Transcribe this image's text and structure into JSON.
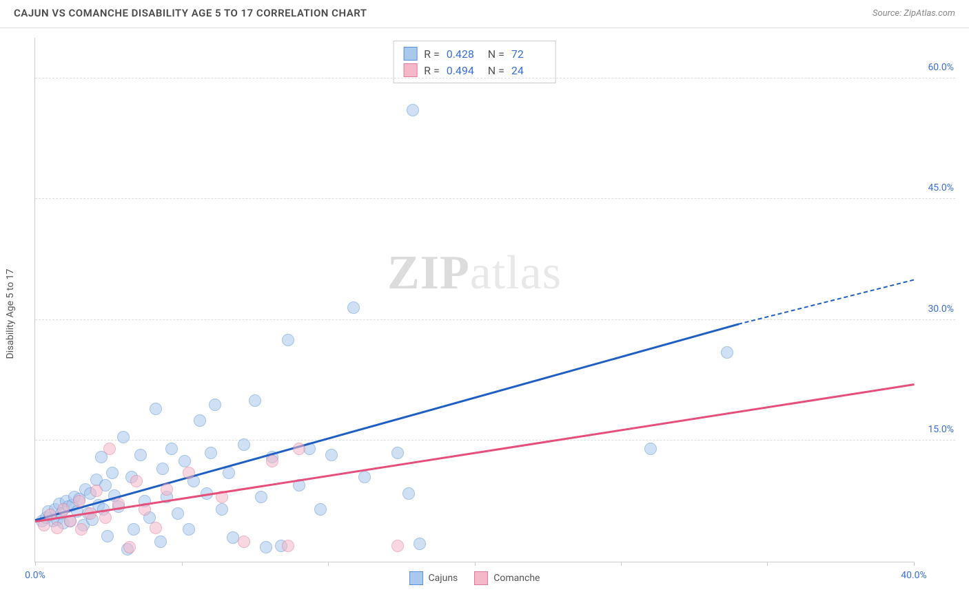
{
  "header": {
    "title": "CAJUN VS COMANCHE DISABILITY AGE 5 TO 17 CORRELATION CHART",
    "source": "Source: ZipAtlas.com"
  },
  "watermark": {
    "bold": "ZIP",
    "rest": "atlas"
  },
  "chart": {
    "type": "scatter",
    "y_axis_label": "Disability Age 5 to 17",
    "xlim": [
      0,
      40
    ],
    "ylim": [
      0,
      65
    ],
    "x_ticks": [
      0,
      6.67,
      13.33,
      20,
      26.67,
      33.33,
      40
    ],
    "x_tick_labels": {
      "0": "0.0%",
      "40": "40.0%"
    },
    "y_ticks": [
      15,
      30,
      45,
      60
    ],
    "y_tick_labels": [
      "15.0%",
      "30.0%",
      "45.0%",
      "60.0%"
    ],
    "grid_color": "#dddddd",
    "axis_label_color": "#3b6fd4",
    "background_color": "#ffffff",
    "marker_radius": 9,
    "marker_opacity": 0.55,
    "series": [
      {
        "name": "Cajuns",
        "fill": "#a8c8ec",
        "stroke": "#5b8fd6",
        "line_color": "#1f5fc4",
        "R": "0.428",
        "N": "72",
        "trend": {
          "x1": 0,
          "y1": 5.2,
          "x2": 32,
          "y2": 29.5,
          "dash_to_x": 40,
          "dash_to_y": 35
        },
        "points": [
          [
            0.3,
            5.0
          ],
          [
            0.5,
            5.5
          ],
          [
            0.6,
            6.2
          ],
          [
            0.8,
            5.0
          ],
          [
            0.9,
            6.5
          ],
          [
            1.0,
            5.2
          ],
          [
            1.1,
            7.2
          ],
          [
            1.2,
            6.0
          ],
          [
            1.3,
            4.8
          ],
          [
            1.4,
            7.5
          ],
          [
            1.5,
            6.8
          ],
          [
            1.6,
            5.0
          ],
          [
            1.7,
            7.0
          ],
          [
            1.8,
            8.0
          ],
          [
            1.9,
            6.2
          ],
          [
            2.0,
            7.8
          ],
          [
            2.2,
            4.5
          ],
          [
            2.3,
            9.0
          ],
          [
            2.4,
            6.0
          ],
          [
            2.5,
            8.5
          ],
          [
            2.6,
            5.2
          ],
          [
            2.8,
            10.2
          ],
          [
            2.9,
            7.0
          ],
          [
            3.0,
            13.0
          ],
          [
            3.1,
            6.5
          ],
          [
            3.2,
            9.5
          ],
          [
            3.3,
            3.2
          ],
          [
            3.5,
            11.0
          ],
          [
            3.6,
            8.2
          ],
          [
            3.8,
            6.8
          ],
          [
            4.0,
            15.5
          ],
          [
            4.2,
            1.5
          ],
          [
            4.4,
            10.5
          ],
          [
            4.5,
            4.0
          ],
          [
            4.8,
            13.2
          ],
          [
            5.0,
            7.5
          ],
          [
            5.2,
            5.5
          ],
          [
            5.5,
            19.0
          ],
          [
            5.7,
            2.5
          ],
          [
            5.8,
            11.5
          ],
          [
            6.0,
            8.0
          ],
          [
            6.2,
            14.0
          ],
          [
            6.5,
            6.0
          ],
          [
            6.8,
            12.5
          ],
          [
            7.0,
            4.0
          ],
          [
            7.2,
            10.0
          ],
          [
            7.5,
            17.5
          ],
          [
            7.8,
            8.5
          ],
          [
            8.0,
            13.5
          ],
          [
            8.2,
            19.5
          ],
          [
            8.5,
            6.5
          ],
          [
            8.8,
            11.0
          ],
          [
            9.0,
            3.0
          ],
          [
            9.5,
            14.5
          ],
          [
            10.0,
            20.0
          ],
          [
            10.3,
            8.0
          ],
          [
            10.5,
            1.8
          ],
          [
            10.8,
            13.0
          ],
          [
            11.2,
            2.0
          ],
          [
            11.5,
            27.5
          ],
          [
            12.0,
            9.5
          ],
          [
            12.5,
            14.0
          ],
          [
            13.0,
            6.5
          ],
          [
            13.5,
            13.2
          ],
          [
            14.5,
            31.5
          ],
          [
            15.0,
            10.5
          ],
          [
            16.5,
            13.5
          ],
          [
            17.0,
            8.5
          ],
          [
            17.2,
            56.0
          ],
          [
            17.5,
            2.2
          ],
          [
            28.0,
            14.0
          ],
          [
            31.5,
            26.0
          ]
        ]
      },
      {
        "name": "Comanche",
        "fill": "#f4b8c8",
        "stroke": "#e07a9a",
        "line_color": "#e54f7a",
        "R": "0.494",
        "N": "24",
        "trend": {
          "x1": 0,
          "y1": 5.0,
          "x2": 40,
          "y2": 22.0
        },
        "points": [
          [
            0.4,
            4.5
          ],
          [
            0.7,
            5.8
          ],
          [
            1.0,
            4.2
          ],
          [
            1.3,
            6.5
          ],
          [
            1.6,
            5.0
          ],
          [
            2.0,
            7.5
          ],
          [
            2.1,
            4.0
          ],
          [
            2.5,
            6.0
          ],
          [
            2.8,
            8.8
          ],
          [
            3.2,
            5.5
          ],
          [
            3.4,
            14.0
          ],
          [
            3.8,
            7.2
          ],
          [
            4.3,
            1.8
          ],
          [
            4.6,
            10.0
          ],
          [
            5.0,
            6.5
          ],
          [
            5.5,
            4.2
          ],
          [
            6.0,
            9.0
          ],
          [
            7.0,
            11.0
          ],
          [
            8.5,
            8.0
          ],
          [
            9.5,
            2.5
          ],
          [
            10.8,
            12.5
          ],
          [
            11.5,
            2.0
          ],
          [
            12.0,
            14.0
          ],
          [
            16.5,
            2.0
          ]
        ]
      }
    ]
  },
  "legend": {
    "items": [
      {
        "label": "Cajuns",
        "fill": "#a8c8ec",
        "stroke": "#5b8fd6"
      },
      {
        "label": "Comanche",
        "fill": "#f4b8c8",
        "stroke": "#e07a9a"
      }
    ]
  }
}
